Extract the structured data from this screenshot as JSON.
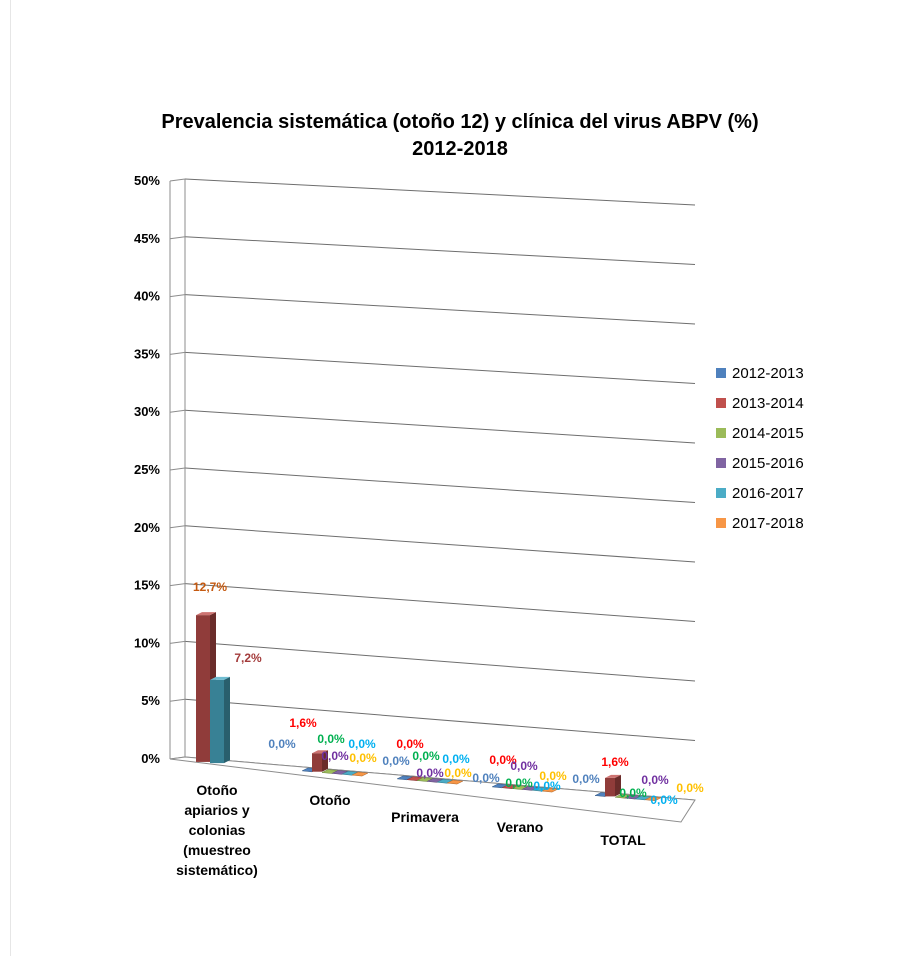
{
  "chart_data": {
    "type": "bar",
    "title": "Prevalencia sistemática (otoño 12) y clínica del virus ABPV (%)",
    "subtitle": "2012-2018",
    "ylim": [
      0,
      50
    ],
    "ytick_labels": [
      "0%",
      "5%",
      "10%",
      "15%",
      "20%",
      "25%",
      "30%",
      "35%",
      "40%",
      "45%",
      "50%"
    ],
    "categories": [
      "Otoño apiarios y colonias (muestreo sistemático)",
      "Otoño",
      "Primavera",
      "Verano",
      "TOTAL"
    ],
    "category_lines": [
      [
        "Otoño",
        "apiarios y",
        "colonias",
        "(muestreo",
        "sistemático)"
      ],
      [
        "Otoño"
      ],
      [
        "Primavera"
      ],
      [
        "Verano"
      ],
      [
        "TOTAL"
      ]
    ],
    "legend_position": "right",
    "grid": true,
    "series": [
      {
        "name": "2012-2013",
        "color": "#4f81bd",
        "label_color": "#4f81bd",
        "values": [
          null,
          0.0,
          0.0,
          0.0,
          0.0
        ],
        "labels": [
          "",
          "0,0%",
          "0,0%",
          "0,0%",
          "0,0%"
        ]
      },
      {
        "name": "2013-2014",
        "color": "#c0504d",
        "label_color": "#ff0000",
        "values": [
          12.7,
          1.6,
          0.0,
          0.0,
          1.6
        ],
        "labels": [
          "12,7%",
          "1,6%",
          "0,0%",
          "0,0%",
          "1,6%"
        ]
      },
      {
        "name": "2014-2015",
        "color": "#9bbb59",
        "label_color": "#00b050",
        "values": [
          null,
          0.0,
          0.0,
          0.0,
          0.0
        ],
        "labels": [
          "",
          "0,0%",
          "0,0%",
          "0,0%",
          "0,0%"
        ]
      },
      {
        "name": "2015-2016",
        "color": "#8064a2",
        "label_color": "#7030a0",
        "values": [
          null,
          0.0,
          0.0,
          0.0,
          0.0
        ],
        "labels": [
          "",
          "0,0%",
          "0,0%",
          "0,0%",
          "0,0%"
        ]
      },
      {
        "name": "2016-2017",
        "color": "#4bacc6",
        "label_color": "#00b0f0",
        "values": [
          7.2,
          0.0,
          0.0,
          0.0,
          0.0
        ],
        "labels": [
          "7,2%",
          "0,0%",
          "0,0%",
          "0,0%",
          "0,0%"
        ]
      },
      {
        "name": "2017-2018",
        "color": "#f79646",
        "label_color": "#ffc000",
        "values": [
          null,
          0.0,
          0.0,
          0.0,
          0.0
        ],
        "labels": [
          "",
          "0,0%",
          "0,0%",
          "0,0%",
          "0,0%"
        ]
      }
    ]
  }
}
